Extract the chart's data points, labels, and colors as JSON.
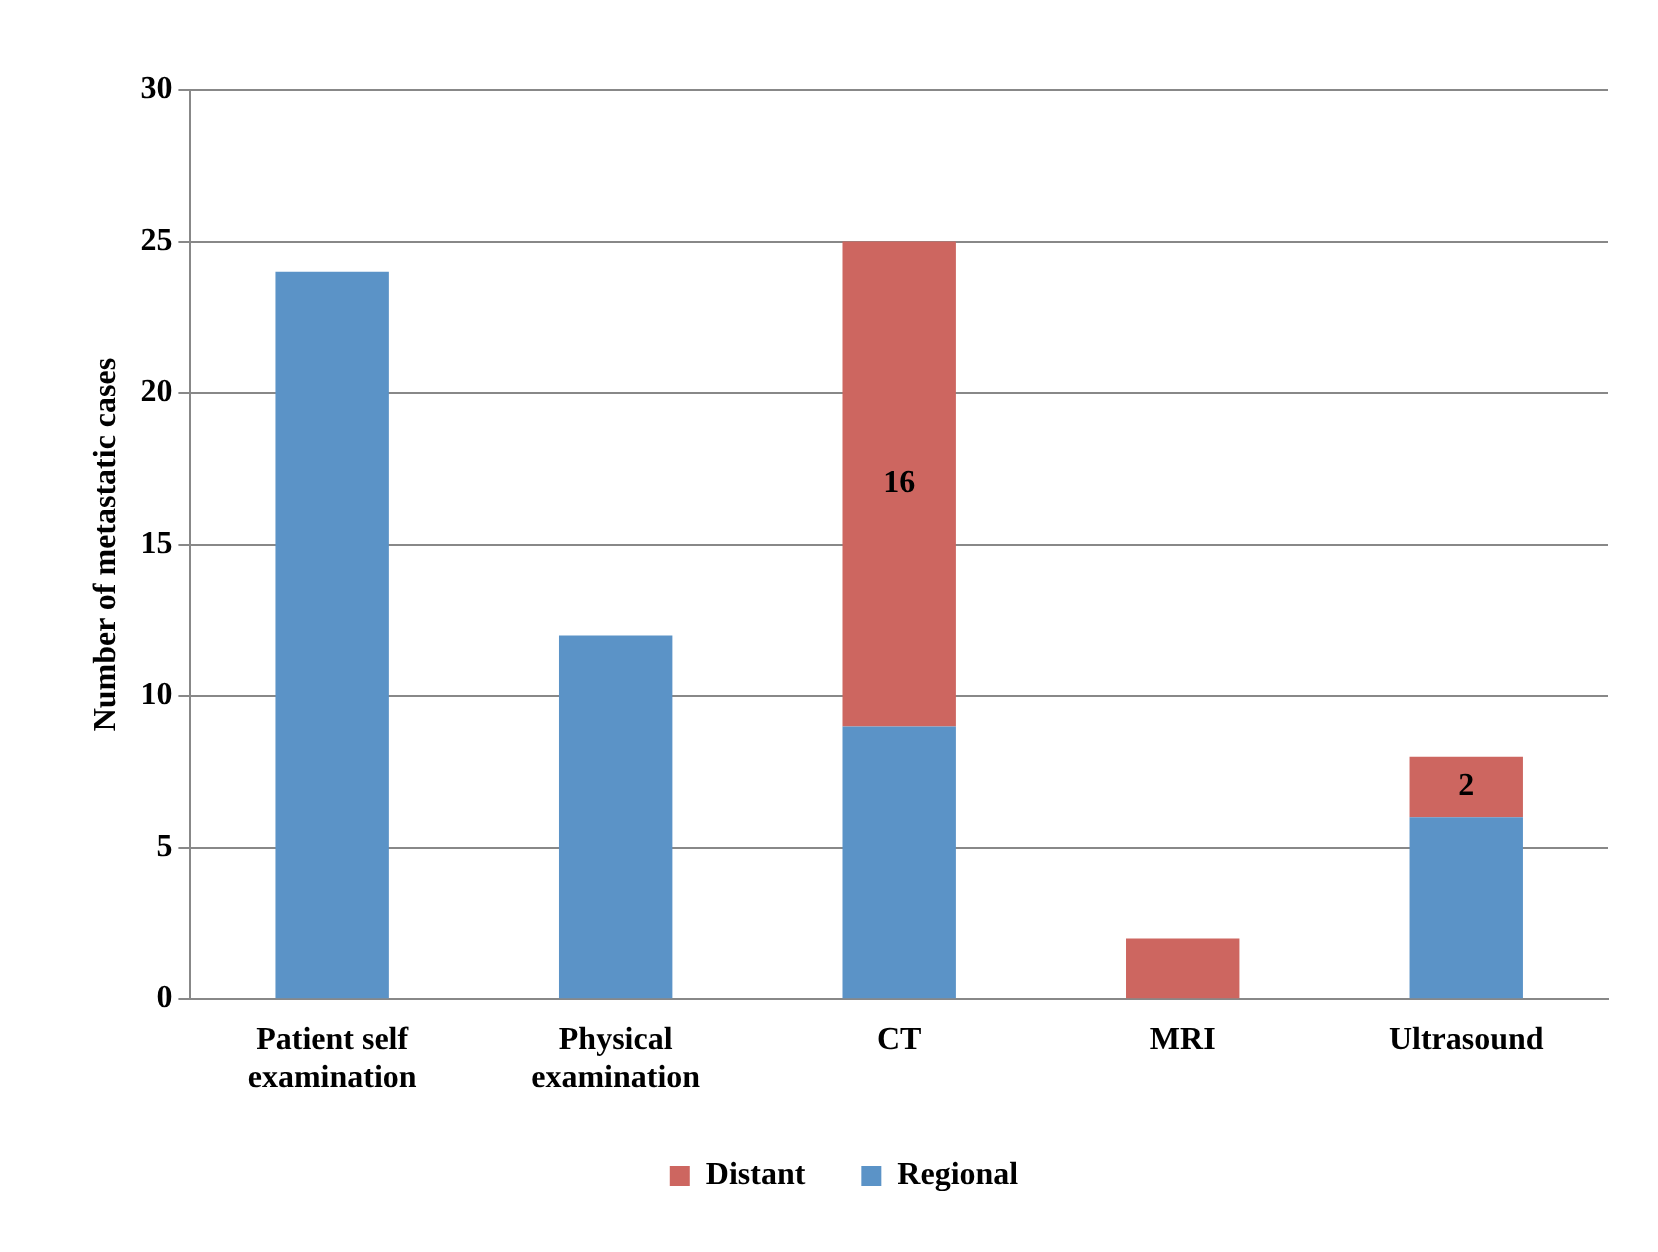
{
  "chart_data": {
    "type": "bar",
    "ylabel": "Number of metastatic cases",
    "categories": [
      "Patient self examination",
      "Physical examination",
      "CT",
      "MRI",
      "Ultrasound"
    ],
    "stacked": true,
    "ylim": [
      0,
      30
    ],
    "yticks": [
      0,
      5,
      10,
      15,
      20,
      25,
      30
    ],
    "grid": "y",
    "legend": "bottom",
    "series": [
      {
        "name": "Regional",
        "color": "#5b93c7",
        "values": [
          24,
          12,
          9,
          null,
          6
        ]
      },
      {
        "name": "Distant",
        "color": "#cd6660",
        "values": [
          null,
          null,
          16,
          2,
          2
        ],
        "value_labels": [
          null,
          null,
          "16",
          null,
          "2"
        ]
      }
    ]
  }
}
